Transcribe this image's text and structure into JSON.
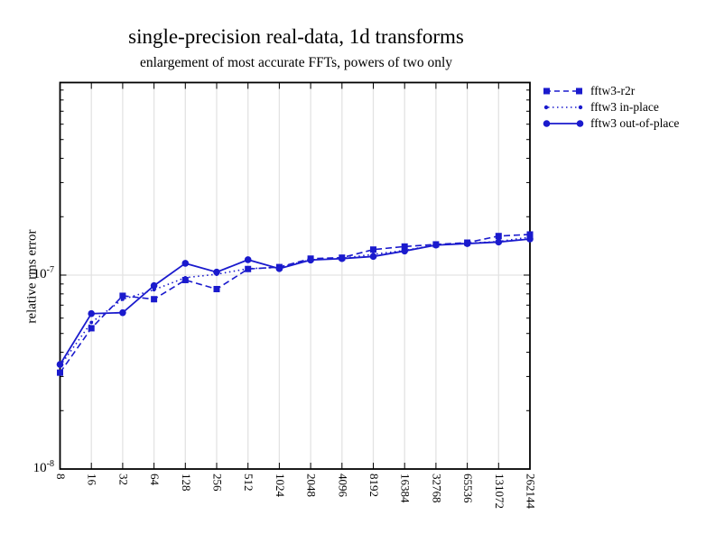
{
  "title": "single-precision real-data, 1d transforms",
  "subtitle": "enlargement of most accurate FFTs, powers of two only",
  "ylabel": "relative rms error",
  "colors": {
    "accent": "#1a1acd",
    "grid": "#e3e3e3",
    "frame": "#000000"
  },
  "legend": {
    "items": [
      {
        "label": "fftw3-r2r",
        "style": "dashed-square"
      },
      {
        "label": "fftw3 in-place",
        "style": "dotted-dot"
      },
      {
        "label": "fftw3 out-of-place",
        "style": "solid-circle"
      }
    ]
  },
  "chart_data": {
    "type": "line",
    "title": "single-precision real-data, 1d transforms",
    "subtitle": "enlargement of most accurate FFTs, powers of two only",
    "xlabel": "",
    "ylabel": "relative rms error",
    "x_scale": "log2",
    "y_scale": "log10",
    "grid": true,
    "legend_position": "top-right-outside",
    "categories": [
      8,
      16,
      32,
      64,
      128,
      256,
      512,
      1024,
      2048,
      4096,
      8192,
      16384,
      32768,
      65536,
      131072,
      262144
    ],
    "series": [
      {
        "name": "fftw3-r2r",
        "marker": "square",
        "line": "dashed",
        "values": [
          3.14e-08,
          5.32e-08,
          7.82e-08,
          7.51e-08,
          9.43e-08,
          8.47e-08,
          1.075e-07,
          1.1e-07,
          1.216e-07,
          1.23e-07,
          1.354e-07,
          1.404e-07,
          1.44e-07,
          1.47e-07,
          1.59e-07,
          1.62e-07
        ]
      },
      {
        "name": "fftw3 in-place",
        "marker": "dot",
        "line": "dotted",
        "values": [
          3.4e-08,
          5.7e-08,
          7.5e-08,
          8.4e-08,
          9.7e-08,
          1.01e-07,
          1.08e-07,
          1.095e-07,
          1.2e-07,
          1.22e-07,
          1.28e-07,
          1.34e-07,
          1.43e-07,
          1.46e-07,
          1.49e-07,
          1.57e-07
        ]
      },
      {
        "name": "fftw3 out-of-place",
        "marker": "circle",
        "line": "solid",
        "values": [
          3.46e-08,
          6.33e-08,
          6.4e-08,
          8.82e-08,
          1.15e-07,
          1.036e-07,
          1.2e-07,
          1.08e-07,
          1.196e-07,
          1.216e-07,
          1.248e-07,
          1.331e-07,
          1.428e-07,
          1.454e-07,
          1.481e-07,
          1.535e-07
        ]
      }
    ],
    "yticks": [
      {
        "base": "10",
        "exp": "-8",
        "value": 1e-08
      },
      {
        "base": "10",
        "exp": "-7",
        "value": 1e-07
      }
    ],
    "ylim": [
      1e-08,
      9.8e-07
    ]
  }
}
